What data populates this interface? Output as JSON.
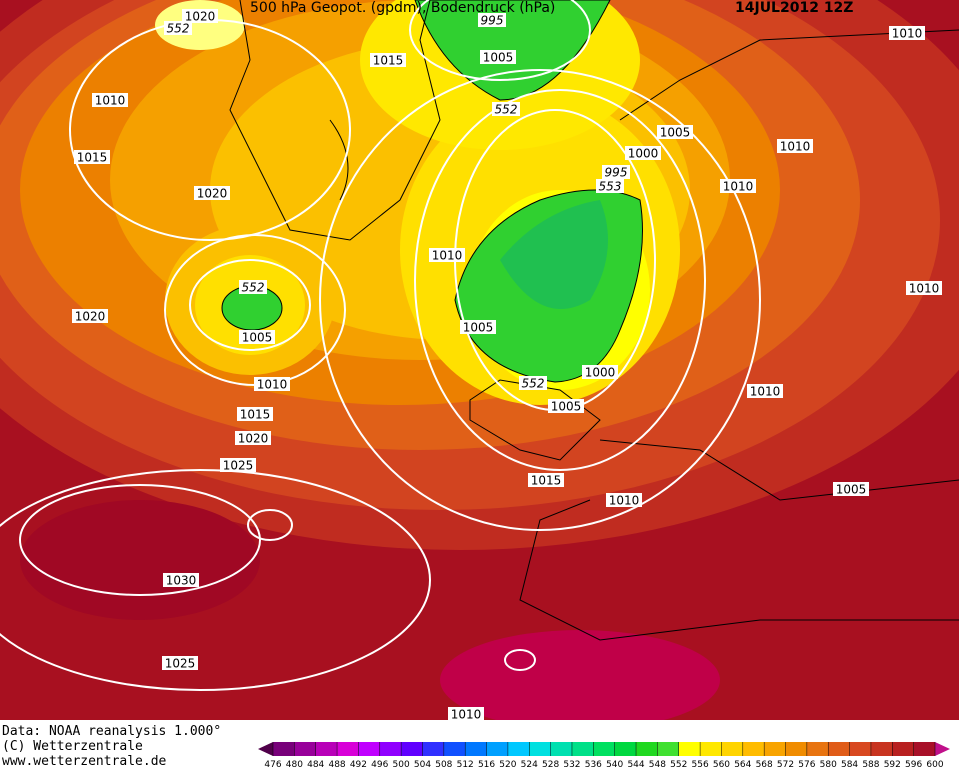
{
  "header": {
    "title": "500 hPa Geopot. (gpdm), Bodendruck (hPa)",
    "date": "14JUL2012 12Z"
  },
  "map": {
    "labels": [
      "1020",
      "552",
      "995",
      "1015",
      "1005",
      "1010",
      "1010",
      "552",
      "1005",
      "1010",
      "1015",
      "1000",
      "995",
      "553",
      "1010",
      "1020",
      "1010",
      "552",
      "1010",
      "1020",
      "1005",
      "1005",
      "1000",
      "552",
      "1010",
      "1010",
      "1005",
      "1015",
      "1020",
      "1025",
      "1015",
      "1010",
      "1005",
      "1030",
      "1025",
      "1010"
    ]
  },
  "footer": {
    "lines": [
      "Data: NOAA reanalysis 1.000°",
      "(C) Wetterzentrale",
      "www.wetterzentrale.de"
    ]
  },
  "colorbar": {
    "ticks": [
      476,
      480,
      484,
      488,
      492,
      496,
      500,
      504,
      508,
      512,
      516,
      520,
      524,
      528,
      532,
      536,
      540,
      544,
      548,
      552,
      556,
      560,
      564,
      568,
      572,
      576,
      580,
      584,
      588,
      592,
      596,
      600
    ],
    "colors": [
      "#50004a",
      "#78007a",
      "#98009a",
      "#b800b8",
      "#d800d8",
      "#c000ff",
      "#9000ff",
      "#6000ff",
      "#3030ff",
      "#1050ff",
      "#0078ff",
      "#00a0ff",
      "#00c8ff",
      "#00e0e0",
      "#00e0b0",
      "#00e088",
      "#00e060",
      "#00d840",
      "#20d820",
      "#40e030",
      "#ffff00",
      "#ffe800",
      "#ffd400",
      "#ffbc00",
      "#f8a400",
      "#f08c00",
      "#e87410",
      "#e05c18",
      "#d84820",
      "#c83420",
      "#b82020",
      "#a81028",
      "#c0108a"
    ]
  }
}
